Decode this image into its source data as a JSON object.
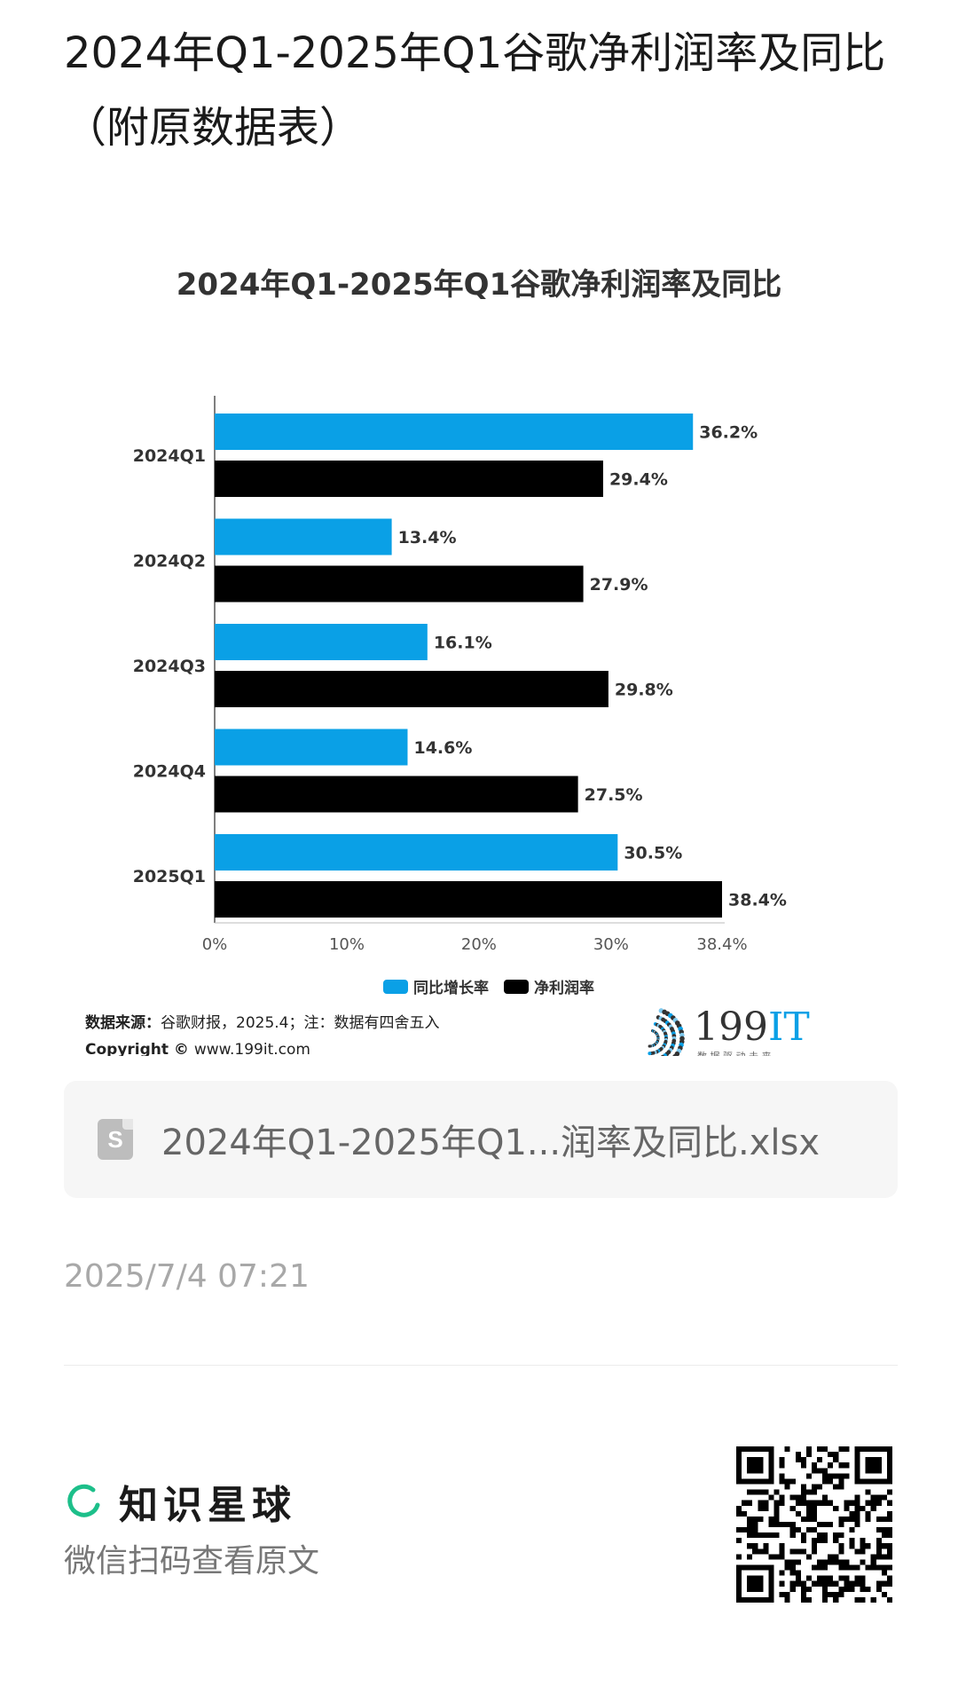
{
  "post": {
    "title": "2024年Q1-2025年Q1谷歌净利润率及同比（附原数据表）",
    "time": "2025/7/4 07:21"
  },
  "attachment": {
    "icon": "spreadsheet-file-icon",
    "icon_letter": "S",
    "filename": "2024年Q1-2025年Q1...润率及同比.xlsx"
  },
  "footer": {
    "brand_name": "知识星球",
    "scan_hint": "微信扫码查看原文",
    "qr_icon": "qr-code-icon"
  },
  "chart_source": {
    "source_label": "数据来源：",
    "source_text": "谷歌财报，2025.4；注：数据有四舍五入",
    "copyright_label": "Copyright ©",
    "copyright_text": "www.199it.com",
    "logo_text": "199",
    "logo_accent": "IT",
    "logo_tagline": "数 据 驱 动 未 来"
  },
  "chart_data": {
    "type": "bar",
    "orientation": "horizontal",
    "title": "2024年Q1-2025年Q1谷歌净利润率及同比",
    "categories": [
      "2024Q1",
      "2024Q2",
      "2024Q3",
      "2024Q4",
      "2025Q1"
    ],
    "series": [
      {
        "name": "同比增长率",
        "color": "#0aa0e6",
        "values": [
          36.2,
          13.4,
          16.1,
          14.6,
          30.5
        ]
      },
      {
        "name": "净利润率",
        "color": "#000000",
        "values": [
          29.4,
          27.9,
          29.8,
          27.5,
          38.4
        ]
      }
    ],
    "value_labels": [
      [
        "36.2%",
        "13.4%",
        "16.1%",
        "14.6%",
        "30.5%"
      ],
      [
        "29.4%",
        "27.9%",
        "29.8%",
        "27.5%",
        "38.4%"
      ]
    ],
    "x_ticks": [
      0,
      10,
      20,
      30,
      38.4
    ],
    "x_tick_labels": [
      "0%",
      "10%",
      "20%",
      "30%",
      "38.4%"
    ],
    "xlim": [
      0,
      38.4
    ],
    "legend_position": "bottom",
    "grid": false
  }
}
